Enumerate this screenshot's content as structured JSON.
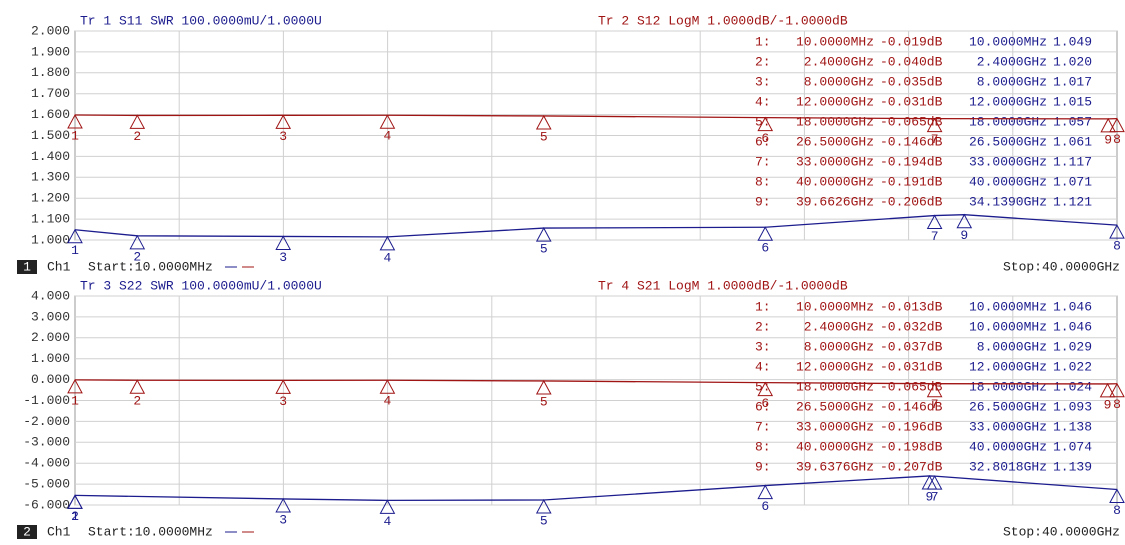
{
  "chart_data": [
    {
      "type": "line",
      "xlim": [
        0.01,
        40
      ],
      "ylim": [
        1,
        2
      ],
      "y2lim": [
        -6,
        4
      ],
      "grid": true,
      "yticks": [
        {
          "value": 2,
          "label": "2.000"
        },
        {
          "value": 1.9,
          "label": "1.900"
        },
        {
          "value": 1.8,
          "label": "1.800"
        },
        {
          "value": 1.7,
          "label": "1.700"
        },
        {
          "value": 1.6,
          "label": "1.600"
        },
        {
          "value": 1.5,
          "label": "1.500"
        },
        {
          "value": 1.4,
          "label": "1.400"
        },
        {
          "value": 1.3,
          "label": "1.300"
        },
        {
          "value": 1.2,
          "label": "1.200"
        },
        {
          "value": 1.1,
          "label": "1.100"
        },
        {
          "value": 1,
          "label": "1.000"
        }
      ],
      "channel_number": "1",
      "channel": "Ch1",
      "start": "Start:10.0000MHz",
      "stop": "Stop:40.0000GHz",
      "series": [
        {
          "name": "Tr 1  S11 SWR 100.0000mU/1.0000U",
          "color": "#1c1c8e",
          "axis": "y",
          "x": [
            0.01,
            2.4,
            8,
            12,
            18,
            26.5,
            33,
            34.139,
            40
          ],
          "values": [
            1.049,
            1.02,
            1.017,
            1.015,
            1.057,
            1.061,
            1.117,
            1.121,
            1.071
          ],
          "labels": [
            "1",
            "2",
            "3",
            "4",
            "5",
            "6",
            "7",
            "9",
            "8"
          ],
          "marker_rows": [
            [
              "10.0000MHz",
              "1.049"
            ],
            [
              "2.4000GHz",
              "1.020"
            ],
            [
              "8.0000GHz",
              "1.017"
            ],
            [
              "12.0000GHz",
              "1.015"
            ],
            [
              "18.0000GHz",
              "1.057"
            ],
            [
              "26.5000GHz",
              "1.061"
            ],
            [
              "33.0000GHz",
              "1.117"
            ],
            [
              "40.0000GHz",
              "1.071"
            ],
            [
              "34.1390GHz",
              "1.121"
            ]
          ]
        },
        {
          "name": "Tr 2  S12 LogM 1.0000dB/-1.0000dB",
          "color": "#a01414",
          "axis": "y2",
          "x": [
            0.01,
            2.4,
            8,
            12,
            18,
            26.5,
            33,
            39.6626,
            40
          ],
          "values": [
            -0.019,
            -0.04,
            -0.035,
            -0.031,
            -0.065,
            -0.146,
            -0.194,
            -0.206,
            -0.191
          ],
          "labels": [
            "1",
            "2",
            "3",
            "4",
            "5",
            "6",
            "7",
            "9",
            "8"
          ],
          "marker_rows": [
            [
              "1:",
              "10.0000MHz",
              "-0.019dB"
            ],
            [
              "2:",
              "2.4000GHz",
              "-0.040dB"
            ],
            [
              "3:",
              "8.0000GHz",
              "-0.035dB"
            ],
            [
              "4:",
              "12.0000GHz",
              "-0.031dB"
            ],
            [
              "5:",
              "18.0000GHz",
              "-0.065dB"
            ],
            [
              "6:",
              "26.5000GHz",
              "-0.146dB"
            ],
            [
              "7:",
              "33.0000GHz",
              "-0.194dB"
            ],
            [
              "8:",
              "40.0000GHz",
              "-0.191dB"
            ],
            [
              "9:",
              "39.6626GHz",
              "-0.206dB"
            ]
          ]
        }
      ]
    },
    {
      "type": "line",
      "xlim": [
        0.01,
        40
      ],
      "ylim": [
        -6,
        4
      ],
      "y2lim": [
        1,
        2
      ],
      "grid": true,
      "yticks": [
        {
          "value": 4,
          "label": "4.000"
        },
        {
          "value": 3,
          "label": "3.000"
        },
        {
          "value": 2,
          "label": "2.000"
        },
        {
          "value": 1,
          "label": "1.000"
        },
        {
          "value": 0,
          "label": "0.000"
        },
        {
          "value": -1,
          "label": "-1.000"
        },
        {
          "value": -2,
          "label": "-2.000"
        },
        {
          "value": -3,
          "label": "-3.000"
        },
        {
          "value": -4,
          "label": "-4.000"
        },
        {
          "value": -5,
          "label": "-5.000"
        },
        {
          "value": -6,
          "label": "-6.000"
        }
      ],
      "channel_number": "2",
      "channel": "Ch1",
      "start": "Start:10.0000MHz",
      "stop": "Stop:40.0000GHz",
      "series": [
        {
          "name": "Tr 3  S22 SWR 100.0000mU/1.0000U",
          "color": "#1c1c8e",
          "axis": "y2",
          "x": [
            0.01,
            0.01,
            8,
            12,
            18,
            26.5,
            32.8018,
            33,
            40
          ],
          "values": [
            1.046,
            1.046,
            1.029,
            1.022,
            1.024,
            1.093,
            1.139,
            1.138,
            1.074
          ],
          "labels": [
            "1",
            "2",
            "3",
            "4",
            "5",
            "6",
            "9",
            "7",
            "8"
          ],
          "marker_rows": [
            [
              "10.0000MHz",
              "1.046"
            ],
            [
              "10.0000MHz",
              "1.046"
            ],
            [
              "8.0000GHz",
              "1.029"
            ],
            [
              "12.0000GHz",
              "1.022"
            ],
            [
              "18.0000GHz",
              "1.024"
            ],
            [
              "26.5000GHz",
              "1.093"
            ],
            [
              "33.0000GHz",
              "1.138"
            ],
            [
              "40.0000GHz",
              "1.074"
            ],
            [
              "32.8018GHz",
              "1.139"
            ]
          ]
        },
        {
          "name": "Tr 4  S21 LogM 1.0000dB/-1.0000dB",
          "color": "#a01414",
          "axis": "y",
          "x": [
            0.01,
            2.4,
            8,
            12,
            18,
            26.5,
            33,
            39.6376,
            40
          ],
          "values": [
            -0.013,
            -0.032,
            -0.037,
            -0.031,
            -0.065,
            -0.146,
            -0.196,
            -0.207,
            -0.198
          ],
          "labels": [
            "1",
            "2",
            "3",
            "4",
            "5",
            "6",
            "7",
            "9",
            "8"
          ],
          "marker_rows": [
            [
              "1:",
              "10.0000MHz",
              "-0.013dB"
            ],
            [
              "2:",
              "2.4000GHz",
              "-0.032dB"
            ],
            [
              "3:",
              "8.0000GHz",
              "-0.037dB"
            ],
            [
              "4:",
              "12.0000GHz",
              "-0.031dB"
            ],
            [
              "5:",
              "18.0000GHz",
              "-0.065dB"
            ],
            [
              "6:",
              "26.5000GHz",
              "-0.146dB"
            ],
            [
              "7:",
              "33.0000GHz",
              "-0.196dB"
            ],
            [
              "8:",
              "40.0000GHz",
              "-0.198dB"
            ],
            [
              "9:",
              "39.6376GHz",
              "-0.207dB"
            ]
          ]
        }
      ]
    }
  ]
}
